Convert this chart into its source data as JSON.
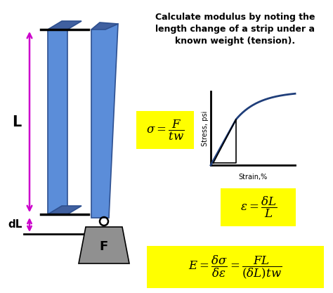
{
  "title_text": "Calculate modulus by noting the\nlength change of a strip under a\nknown weight (tension).",
  "formula1": "$\\sigma = \\dfrac{F}{tw}$",
  "formula2": "$\\varepsilon = \\dfrac{\\delta L}{L}$",
  "formula3": "$E = \\dfrac{\\delta\\sigma}{\\delta\\varepsilon} = \\dfrac{FL}{(\\delta L)tw}$",
  "label_L": "L",
  "label_dL": "dL",
  "label_F": "F",
  "label_strain": "Strain,%",
  "label_stress": "Stress, psi",
  "bg_color": "#ffffff",
  "strip_color": "#4472C4",
  "strip_face_color": "#5B8DD9",
  "strip_side_color": "#3A5FA0",
  "weight_color": "#909090",
  "arrow_color": "#CC00CC",
  "formula_bg": "#FFFF00",
  "text_color": "#000000",
  "curve_color": "#1F3E7A",
  "fig_w": 4.74,
  "fig_h": 4.17,
  "dpi": 100
}
